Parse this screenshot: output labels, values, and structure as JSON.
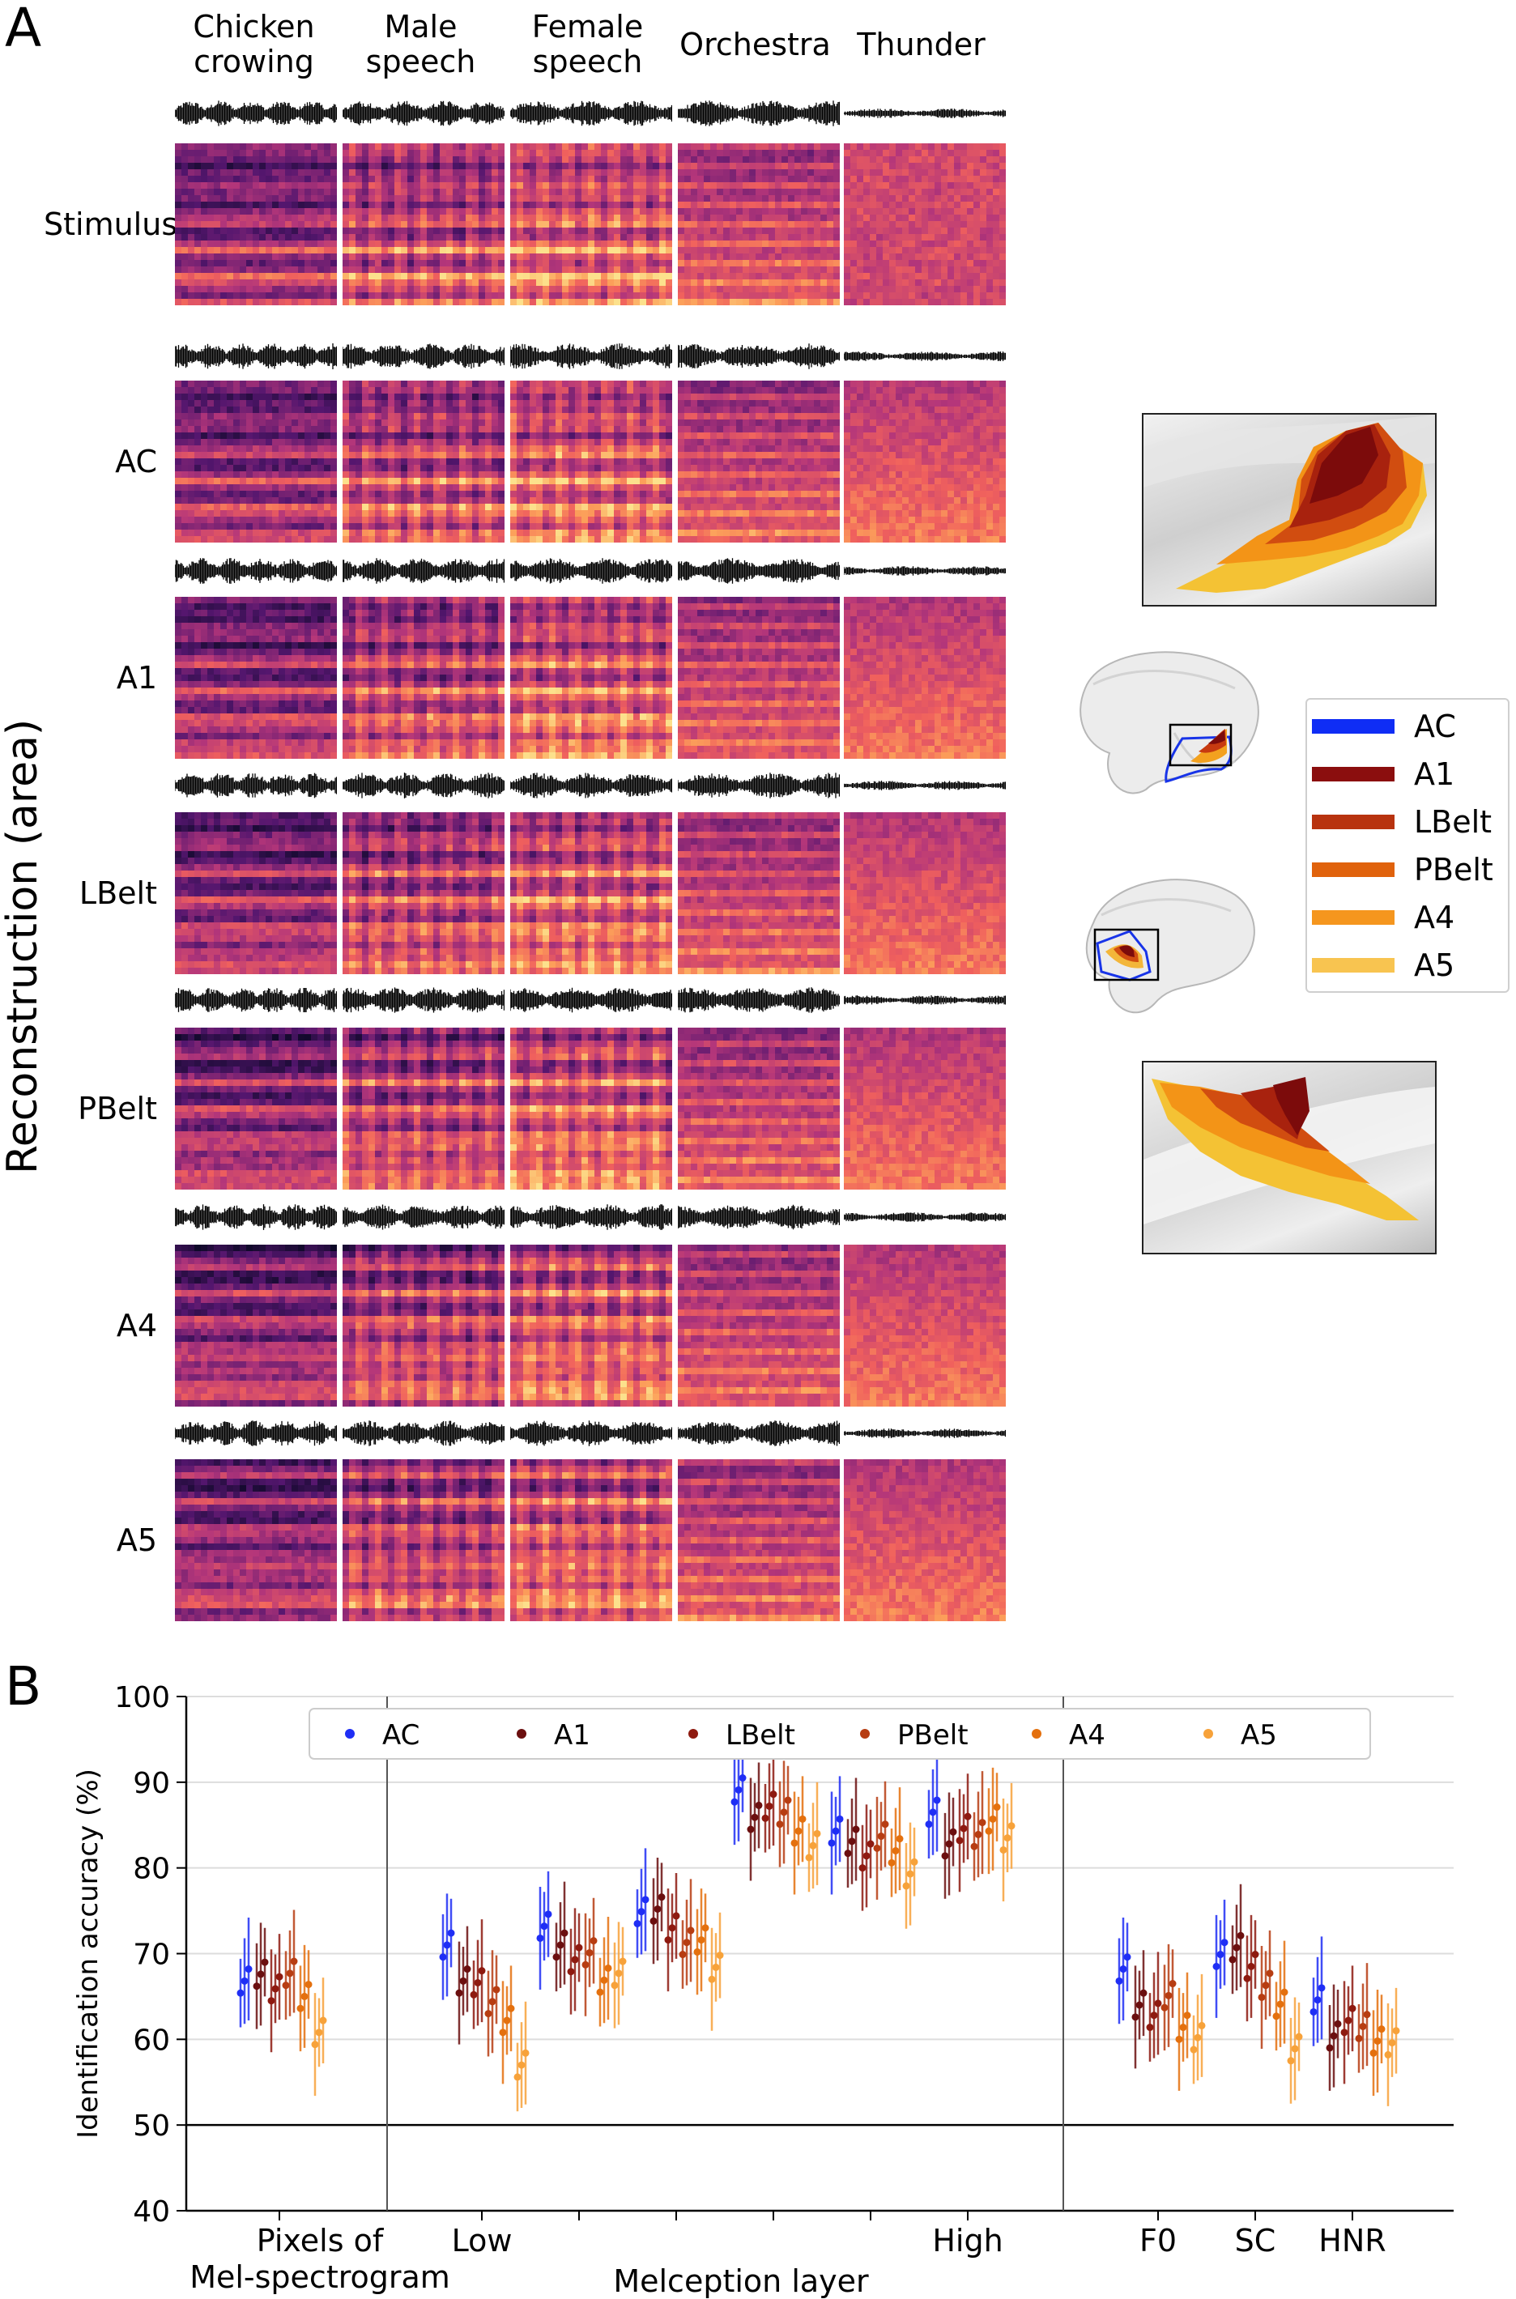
{
  "panel_a": {
    "letter": "A",
    "ylabel": "Reconstruction (area)",
    "columns": [
      {
        "line1": "Chicken",
        "line2": "crowing"
      },
      {
        "line1": "Male",
        "line2": "speech"
      },
      {
        "line1": "Female",
        "line2": "speech"
      },
      {
        "line1": "Orchestra",
        "line2": ""
      },
      {
        "line1": "Thunder",
        "line2": ""
      }
    ],
    "rows": [
      "Stimulus",
      "AC",
      "A1",
      "LBelt",
      "PBelt",
      "A4",
      "A5"
    ],
    "legend": [
      {
        "label": "AC",
        "color": "#0f2df5"
      },
      {
        "label": "A1",
        "color": "#8b0e0e"
      },
      {
        "label": "LBelt",
        "color": "#b8330f"
      },
      {
        "label": "PBelt",
        "color": "#e0620c"
      },
      {
        "label": "A4",
        "color": "#f5961e"
      },
      {
        "label": "A5",
        "color": "#f8c450"
      }
    ]
  },
  "panel_b": {
    "letter": "B",
    "chart_data": {
      "type": "scatter",
      "ylabel": "Identification accuracy (%)",
      "ylim": [
        40,
        100
      ],
      "yticks": [
        40,
        50,
        60,
        70,
        80,
        90,
        100
      ],
      "chance_line": 50,
      "grid": "horizontal",
      "legend_position": "top",
      "series_names": [
        "AC",
        "A1",
        "LBelt",
        "PBelt",
        "A4",
        "A5"
      ],
      "series_colors": [
        "#1f2ef5",
        "#6b0f0f",
        "#8e1a10",
        "#b73d12",
        "#e4700e",
        "#f7a23a"
      ],
      "x_tick_labels": [
        {
          "line1": "Pixels of",
          "line2": "Mel-spectrogram"
        },
        {
          "line1": "Low",
          "line2": ""
        },
        {
          "line1": "High",
          "line2": ""
        },
        {
          "line1": "F0",
          "line2": ""
        },
        {
          "line1": "SC",
          "line2": ""
        },
        {
          "line1": "HNR",
          "line2": ""
        }
      ],
      "group_xlabel": "Melception layer",
      "groups": [
        {
          "name": "Pixels of Mel-spectrogram",
          "series_means": [
            68,
            67,
            66.5,
            66.5,
            65,
            62
          ]
        },
        {
          "name": "Melception layer 1 (Low)",
          "series_means": [
            71,
            68,
            66,
            65,
            61,
            57
          ]
        },
        {
          "name": "Melception layer 2",
          "series_means": [
            72,
            71,
            70.5,
            69.5,
            67.5,
            66.5
          ]
        },
        {
          "name": "Melception layer 3",
          "series_means": [
            75.5,
            74,
            73,
            72.5,
            71,
            69
          ]
        },
        {
          "name": "Melception layer 4",
          "series_means": [
            88.5,
            86.5,
            86,
            86.5,
            85.5,
            82
          ]
        },
        {
          "name": "Melception layer 5",
          "series_means": [
            85.5,
            82.5,
            82,
            82.5,
            82,
            80.5
          ]
        },
        {
          "name": "Melception layer 6 (High)",
          "series_means": [
            86.5,
            84,
            84,
            84.5,
            84.5,
            83.5
          ]
        },
        {
          "name": "F0",
          "series_means": [
            67,
            64,
            64,
            64.5,
            62,
            59
          ]
        },
        {
          "name": "SC",
          "series_means": [
            70.5,
            69.5,
            68.5,
            67.5,
            63.5,
            59.5
          ]
        },
        {
          "name": "HNR",
          "series_means": [
            64,
            61,
            61,
            61.5,
            61,
            59
          ]
        }
      ]
    }
  }
}
